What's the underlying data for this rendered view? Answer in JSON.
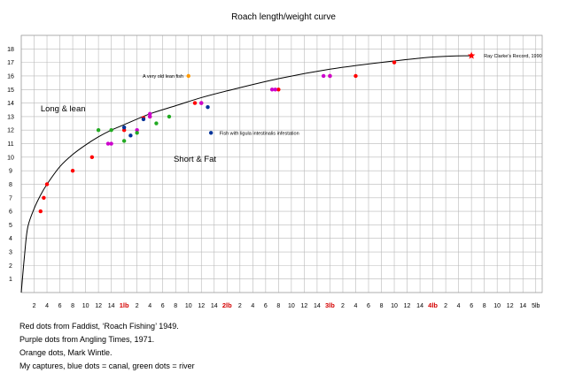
{
  "chart_data": {
    "type": "scatter",
    "title": "Roach length/weight curve",
    "ylim": [
      0,
      19
    ],
    "yticks": [
      1,
      2,
      3,
      4,
      5,
      6,
      7,
      8,
      9,
      10,
      11,
      12,
      13,
      14,
      15,
      16,
      17,
      18
    ],
    "xlim_oz": [
      0,
      81
    ],
    "x_unit": "oz",
    "xticks": [
      {
        "oz": 2,
        "label": "2"
      },
      {
        "oz": 4,
        "label": "4"
      },
      {
        "oz": 6,
        "label": "6"
      },
      {
        "oz": 8,
        "label": "8"
      },
      {
        "oz": 10,
        "label": "10"
      },
      {
        "oz": 12,
        "label": "12"
      },
      {
        "oz": 14,
        "label": "14"
      },
      {
        "oz": 16,
        "label": "1lb",
        "lb": true
      },
      {
        "oz": 18,
        "label": "2"
      },
      {
        "oz": 20,
        "label": "4"
      },
      {
        "oz": 22,
        "label": "6"
      },
      {
        "oz": 24,
        "label": "8"
      },
      {
        "oz": 26,
        "label": "10"
      },
      {
        "oz": 28,
        "label": "12"
      },
      {
        "oz": 30,
        "label": "14"
      },
      {
        "oz": 32,
        "label": "2lb",
        "lb": true
      },
      {
        "oz": 34,
        "label": "2"
      },
      {
        "oz": 36,
        "label": "4"
      },
      {
        "oz": 38,
        "label": "6"
      },
      {
        "oz": 40,
        "label": "8"
      },
      {
        "oz": 42,
        "label": "10"
      },
      {
        "oz": 44,
        "label": "12"
      },
      {
        "oz": 46,
        "label": "14"
      },
      {
        "oz": 48,
        "label": "3lb",
        "lb": true
      },
      {
        "oz": 50,
        "label": "2"
      },
      {
        "oz": 52,
        "label": "4"
      },
      {
        "oz": 54,
        "label": "6"
      },
      {
        "oz": 56,
        "label": "8"
      },
      {
        "oz": 58,
        "label": "10"
      },
      {
        "oz": 60,
        "label": "12"
      },
      {
        "oz": 62,
        "label": "14"
      },
      {
        "oz": 64,
        "label": "4lb",
        "lb": true
      },
      {
        "oz": 66,
        "label": "2"
      },
      {
        "oz": 68,
        "label": "4"
      },
      {
        "oz": 70,
        "label": "6"
      },
      {
        "oz": 72,
        "label": "8"
      },
      {
        "oz": 74,
        "label": "10"
      },
      {
        "oz": 76,
        "label": "12"
      },
      {
        "oz": 78,
        "label": "14"
      },
      {
        "oz": 80,
        "label": "5lb"
      }
    ],
    "grid": true,
    "curve": {
      "points": [
        [
          0,
          0
        ],
        [
          0.5,
          2.7
        ],
        [
          1,
          4.8
        ],
        [
          2,
          6.2
        ],
        [
          3,
          7.2
        ],
        [
          4,
          8.0
        ],
        [
          6,
          9.3
        ],
        [
          8,
          10.2
        ],
        [
          10,
          10.9
        ],
        [
          12,
          11.5
        ],
        [
          14,
          12.0
        ],
        [
          16,
          12.4
        ],
        [
          20,
          13.2
        ],
        [
          24,
          13.8
        ],
        [
          28,
          14.4
        ],
        [
          32,
          14.9
        ],
        [
          40,
          15.8
        ],
        [
          48,
          16.5
        ],
        [
          56,
          17.0
        ],
        [
          64,
          17.4
        ],
        [
          70,
          17.5
        ]
      ]
    },
    "series": [
      {
        "color": "#ff0000",
        "points": [
          [
            3,
            6
          ],
          [
            3.5,
            7
          ],
          [
            4,
            8
          ],
          [
            8,
            9
          ],
          [
            11,
            10
          ],
          [
            16,
            12
          ],
          [
            19,
            12.9
          ],
          [
            20,
            13.0
          ],
          [
            27,
            14
          ],
          [
            28,
            14
          ],
          [
            40,
            15
          ],
          [
            48,
            16
          ],
          [
            52,
            16
          ],
          [
            58,
            17
          ],
          [
            70,
            17.5
          ]
        ]
      },
      {
        "color": "#cc00cc",
        "points": [
          [
            13.5,
            11
          ],
          [
            14,
            11
          ],
          [
            18,
            12
          ],
          [
            20,
            13
          ],
          [
            20,
            13.2
          ],
          [
            28,
            14
          ],
          [
            39,
            15
          ],
          [
            39.5,
            15
          ],
          [
            47,
            16
          ],
          [
            48,
            16
          ]
        ]
      },
      {
        "color": "#ff9900",
        "points": [
          [
            26,
            16
          ]
        ]
      },
      {
        "color": "#003399",
        "points": [
          [
            16,
            12.2
          ],
          [
            17,
            11.6
          ],
          [
            19,
            12.8
          ],
          [
            29,
            13.7
          ],
          [
            29.5,
            11.8
          ]
        ]
      },
      {
        "color": "#22aa22",
        "points": [
          [
            12,
            12
          ],
          [
            14,
            12
          ],
          [
            16,
            11.2
          ],
          [
            18,
            11.8
          ],
          [
            21,
            12.5
          ],
          [
            23,
            13
          ]
        ]
      }
    ],
    "record": {
      "oz": 70,
      "length": 17.5,
      "color": "#ff0000",
      "label": "Ray Clarke's Record, 1990"
    },
    "annotations": [
      {
        "text": "A very old lean fish",
        "oz": 25.5,
        "length": 16
      },
      {
        "text": "Fish with ligula intestinalis infestation",
        "oz": 30,
        "length": 11.8
      },
      {
        "text": "Long & lean",
        "oz": 6.5,
        "length": 13.5,
        "big": true
      },
      {
        "text": "Short & Fat",
        "oz": 27,
        "length": 9.8,
        "big": true
      }
    ]
  },
  "legend": [
    "Red dots from Faddist, ‘Roach Fishing’ 1949.",
    "Purple dots from Angling Times, 1971.",
    "Orange dots, Mark Wintle.",
    "My captures, blue dots = canal, green dots = river"
  ]
}
